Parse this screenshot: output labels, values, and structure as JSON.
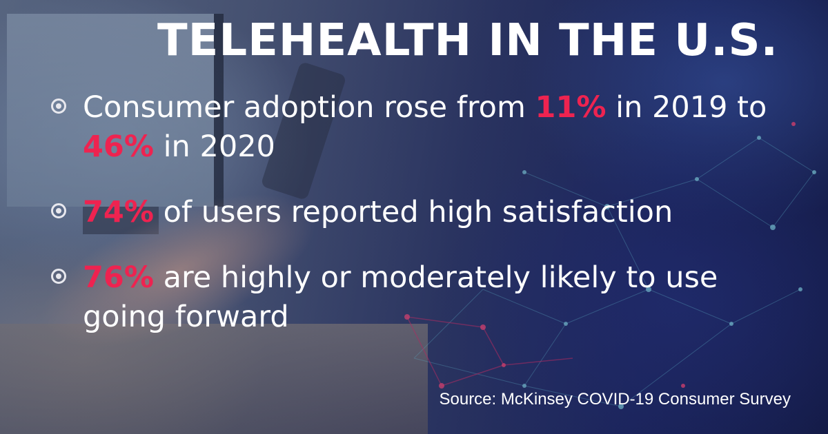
{
  "title": "TELEHEALTH IN THE U.S.",
  "bullets": [
    {
      "text_before": "Consumer adoption rose from ",
      "highlight_1": "11%",
      "text_middle": " in 2019 to ",
      "highlight_2": "46%",
      "text_after": " in 2020"
    },
    {
      "highlight": "74%",
      "text": " of users reported high satisfaction"
    },
    {
      "highlight": "76%",
      "text": " are highly or moderately likely to use going forward"
    }
  ],
  "source": "Source: McKinsey COVID-19 Consumer Survey",
  "colors": {
    "highlight": "#ee2350",
    "text": "#ffffff",
    "background_dark": "#1c2660"
  },
  "icons": {
    "bullet": "radio-bullet-icon"
  }
}
